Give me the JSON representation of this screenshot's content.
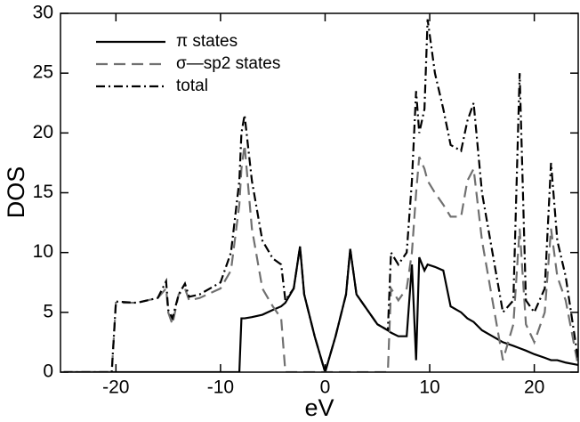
{
  "chart_data": {
    "type": "line",
    "xlabel": "eV",
    "ylabel": "DOS",
    "x": [
      -25,
      -20.4,
      -20,
      -18,
      -16,
      -15.2,
      -15,
      -14.6,
      -14,
      -13.4,
      -13,
      -12,
      -10,
      -9,
      -8.2,
      -8,
      -7.7,
      -7,
      -6,
      -5,
      -4.2,
      -3.8,
      -3,
      -2.4,
      -2,
      -1,
      0,
      1,
      2,
      2.4,
      3,
      5,
      6,
      6.3,
      7,
      7.8,
      8.3,
      8.7,
      9,
      9.5,
      9.8,
      10.5,
      11.3,
      12,
      13,
      13.6,
      14.2,
      15,
      16,
      17,
      18,
      18.6,
      19.2,
      20,
      21,
      21.6,
      22.2,
      23,
      24.2
    ],
    "series": [
      {
        "name": "π states",
        "color": "#000000",
        "dash": "none",
        "values": [
          0,
          0,
          0,
          0,
          0,
          0,
          0,
          0,
          0,
          0,
          0,
          0,
          0,
          0,
          0,
          4.5,
          4.5,
          4.6,
          4.8,
          5.2,
          5.5,
          5.8,
          7,
          10.5,
          6.5,
          3,
          0,
          3,
          6.5,
          10.3,
          6.5,
          4,
          3.5,
          3.3,
          3,
          3,
          9,
          1,
          9.6,
          8.5,
          9,
          8.8,
          8.5,
          5.5,
          5,
          4.5,
          4.2,
          3.5,
          3,
          2.5,
          2.2,
          2,
          1.8,
          1.5,
          1.2,
          1,
          1,
          0.8,
          0.6
        ]
      },
      {
        "name": "σ—sp2 states",
        "color": "#707070",
        "dash": "13,7",
        "values": [
          0,
          0,
          5.8,
          5.8,
          6.2,
          7,
          5,
          4,
          6.5,
          7,
          6,
          6.2,
          7,
          8.5,
          14,
          17,
          19,
          12,
          7,
          5.5,
          4.5,
          0,
          0,
          0,
          0,
          0,
          0,
          0,
          0,
          0,
          0,
          0,
          0,
          7,
          6,
          7,
          10,
          15,
          18,
          17,
          16,
          15,
          14,
          13,
          13,
          16,
          17,
          11,
          6,
          1,
          4,
          12,
          4,
          2.5,
          5,
          12,
          8,
          6,
          0.5
        ]
      },
      {
        "name": "total",
        "color": "#000000",
        "dash": "10,4,2,4",
        "values": [
          0,
          0,
          5.9,
          5.8,
          6.2,
          7.6,
          5.2,
          4.5,
          6.5,
          7.4,
          6.3,
          6.5,
          7.5,
          10,
          16,
          20,
          21.5,
          16,
          11,
          9.5,
          9,
          6,
          7,
          10.5,
          6.5,
          3,
          0,
          3,
          6.5,
          10.3,
          6.5,
          4,
          3.5,
          10,
          9,
          10,
          16,
          23.5,
          20,
          22,
          29.5,
          25,
          22,
          19,
          18.5,
          21,
          22.5,
          15,
          10,
          5,
          6,
          25,
          6,
          5,
          7,
          17.5,
          11,
          8,
          1
        ]
      }
    ],
    "xlim": [
      -25.3,
      24.2
    ],
    "ylim": [
      0,
      30
    ],
    "xticks": [
      -20,
      -10,
      0,
      10,
      20
    ],
    "yticks": [
      0,
      5,
      10,
      15,
      20,
      25,
      30
    ],
    "legend": "upper left"
  }
}
